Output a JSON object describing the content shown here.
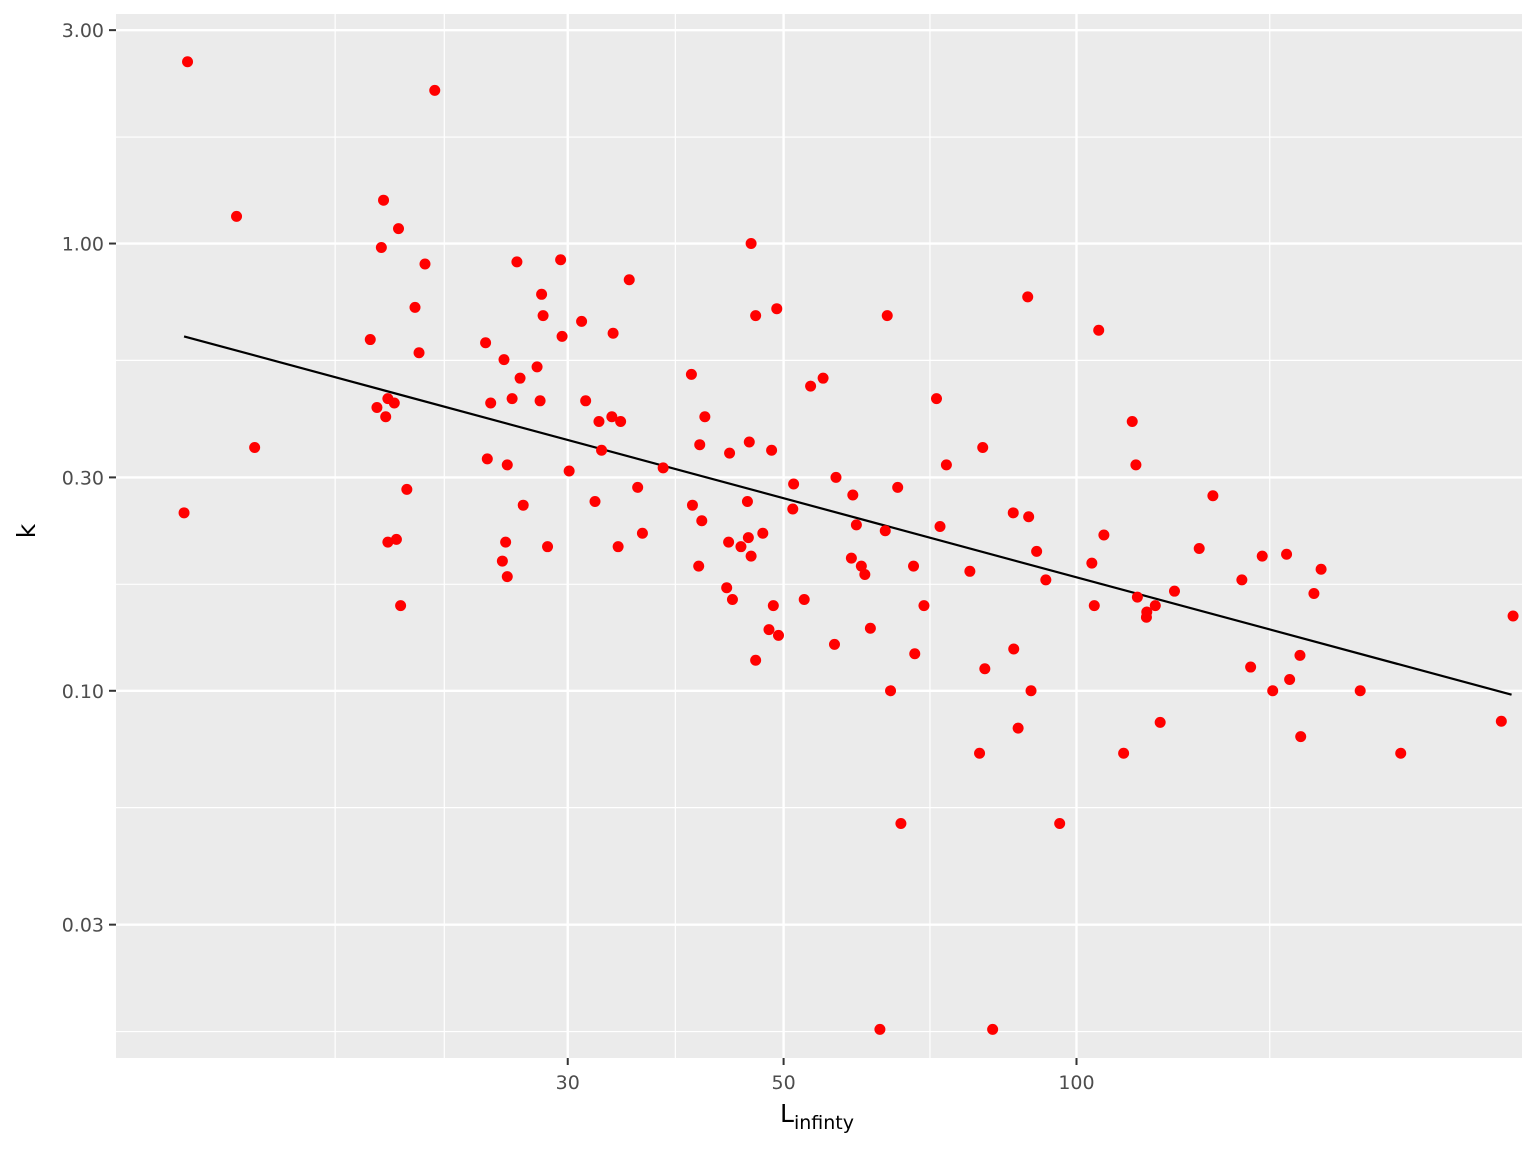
{
  "chart_data": {
    "type": "scatter",
    "xlabel": "L",
    "xlabel_subscript": "infinty",
    "ylabel": "k",
    "x_scale": "log10",
    "y_scale": "log10",
    "xlim": [
      10.3,
      287
    ],
    "ylim": [
      0.0151,
      3.26
    ],
    "x_ticks": [
      {
        "value": 30,
        "label": "30"
      },
      {
        "value": 50,
        "label": "50"
      },
      {
        "value": 100,
        "label": "100"
      }
    ],
    "y_ticks": [
      {
        "value": 0.03,
        "label": "0.03"
      },
      {
        "value": 0.1,
        "label": "0.10"
      },
      {
        "value": 0.3,
        "label": "0.30"
      },
      {
        "value": 1,
        "label": "1.00"
      },
      {
        "value": 3,
        "label": "3.00"
      }
    ],
    "x_minor_grid": [
      17.3,
      22.4,
      38.7,
      70.7,
      158
    ],
    "y_minor_grid": [
      0.0173,
      0.0548,
      0.173,
      0.548,
      1.73
    ],
    "grid": true,
    "point_color": "#ff0000",
    "line_color": "#000000",
    "panel_background": "#ebebeb",
    "grid_color": "#ffffff",
    "fit_line": {
      "x": [
        12.1,
        280
      ],
      "y": [
        0.62,
        0.098
      ]
    },
    "points": [
      {
        "x": 12.2,
        "y": 2.55
      },
      {
        "x": 13.7,
        "y": 1.15
      },
      {
        "x": 14.3,
        "y": 0.35
      },
      {
        "x": 12.1,
        "y": 0.25
      },
      {
        "x": 18.8,
        "y": 0.61
      },
      {
        "x": 19.1,
        "y": 0.43
      },
      {
        "x": 19.3,
        "y": 0.98
      },
      {
        "x": 19.4,
        "y": 1.25
      },
      {
        "x": 19.5,
        "y": 0.41
      },
      {
        "x": 19.6,
        "y": 0.45
      },
      {
        "x": 19.6,
        "y": 0.215
      },
      {
        "x": 19.9,
        "y": 0.44
      },
      {
        "x": 20.0,
        "y": 0.218
      },
      {
        "x": 20.1,
        "y": 1.08
      },
      {
        "x": 20.2,
        "y": 0.155
      },
      {
        "x": 20.5,
        "y": 0.282
      },
      {
        "x": 20.9,
        "y": 0.72
      },
      {
        "x": 21.1,
        "y": 0.57
      },
      {
        "x": 21.4,
        "y": 0.9
      },
      {
        "x": 21.9,
        "y": 2.2
      },
      {
        "x": 24.7,
        "y": 0.6
      },
      {
        "x": 24.8,
        "y": 0.33
      },
      {
        "x": 25.0,
        "y": 0.44
      },
      {
        "x": 25.7,
        "y": 0.195
      },
      {
        "x": 25.8,
        "y": 0.55
      },
      {
        "x": 25.9,
        "y": 0.215
      },
      {
        "x": 26.0,
        "y": 0.32
      },
      {
        "x": 26.0,
        "y": 0.18
      },
      {
        "x": 26.3,
        "y": 0.45
      },
      {
        "x": 26.6,
        "y": 0.91
      },
      {
        "x": 26.8,
        "y": 0.5
      },
      {
        "x": 27.0,
        "y": 0.26
      },
      {
        "x": 27.9,
        "y": 0.53
      },
      {
        "x": 28.1,
        "y": 0.445
      },
      {
        "x": 28.2,
        "y": 0.77
      },
      {
        "x": 28.3,
        "y": 0.69
      },
      {
        "x": 28.6,
        "y": 0.21
      },
      {
        "x": 29.5,
        "y": 0.92
      },
      {
        "x": 29.6,
        "y": 0.62
      },
      {
        "x": 30.1,
        "y": 0.31
      },
      {
        "x": 31.0,
        "y": 0.67
      },
      {
        "x": 31.3,
        "y": 0.445
      },
      {
        "x": 32.0,
        "y": 0.265
      },
      {
        "x": 32.3,
        "y": 0.4
      },
      {
        "x": 32.5,
        "y": 0.345
      },
      {
        "x": 33.3,
        "y": 0.41
      },
      {
        "x": 33.4,
        "y": 0.63
      },
      {
        "x": 33.8,
        "y": 0.21
      },
      {
        "x": 34.0,
        "y": 0.4
      },
      {
        "x": 34.7,
        "y": 0.83
      },
      {
        "x": 35.4,
        "y": 0.285
      },
      {
        "x": 35.8,
        "y": 0.225
      },
      {
        "x": 37.6,
        "y": 0.315
      },
      {
        "x": 40.2,
        "y": 0.51
      },
      {
        "x": 40.3,
        "y": 0.26
      },
      {
        "x": 40.9,
        "y": 0.19
      },
      {
        "x": 41.0,
        "y": 0.355
      },
      {
        "x": 41.2,
        "y": 0.24
      },
      {
        "x": 41.5,
        "y": 0.41
      },
      {
        "x": 43.7,
        "y": 0.17
      },
      {
        "x": 43.9,
        "y": 0.215
      },
      {
        "x": 44.0,
        "y": 0.34
      },
      {
        "x": 44.3,
        "y": 0.16
      },
      {
        "x": 45.2,
        "y": 0.21
      },
      {
        "x": 45.9,
        "y": 0.265
      },
      {
        "x": 46.0,
        "y": 0.22
      },
      {
        "x": 46.1,
        "y": 0.36
      },
      {
        "x": 46.3,
        "y": 0.2
      },
      {
        "x": 46.3,
        "y": 1.0
      },
      {
        "x": 46.8,
        "y": 0.69
      },
      {
        "x": 46.8,
        "y": 0.117
      },
      {
        "x": 47.6,
        "y": 0.225
      },
      {
        "x": 48.3,
        "y": 0.137
      },
      {
        "x": 48.6,
        "y": 0.345
      },
      {
        "x": 48.8,
        "y": 0.155
      },
      {
        "x": 49.2,
        "y": 0.715
      },
      {
        "x": 49.4,
        "y": 0.133
      },
      {
        "x": 51.1,
        "y": 0.255
      },
      {
        "x": 51.2,
        "y": 0.29
      },
      {
        "x": 52.5,
        "y": 0.16
      },
      {
        "x": 53.3,
        "y": 0.48
      },
      {
        "x": 54.9,
        "y": 0.5
      },
      {
        "x": 56.4,
        "y": 0.127
      },
      {
        "x": 56.6,
        "y": 0.3
      },
      {
        "x": 58.7,
        "y": 0.198
      },
      {
        "x": 58.9,
        "y": 0.274
      },
      {
        "x": 59.4,
        "y": 0.235
      },
      {
        "x": 60.1,
        "y": 0.19
      },
      {
        "x": 60.6,
        "y": 0.182
      },
      {
        "x": 61.4,
        "y": 0.138
      },
      {
        "x": 63.6,
        "y": 0.228
      },
      {
        "x": 63.9,
        "y": 0.69
      },
      {
        "x": 64.4,
        "y": 0.1
      },
      {
        "x": 65.5,
        "y": 0.285
      },
      {
        "x": 66.0,
        "y": 0.0505
      },
      {
        "x": 62.8,
        "y": 0.0175
      },
      {
        "x": 68.0,
        "y": 0.19
      },
      {
        "x": 68.2,
        "y": 0.121
      },
      {
        "x": 69.7,
        "y": 0.155
      },
      {
        "x": 71.8,
        "y": 0.45
      },
      {
        "x": 72.4,
        "y": 0.233
      },
      {
        "x": 73.5,
        "y": 0.32
      },
      {
        "x": 77.7,
        "y": 0.185
      },
      {
        "x": 79.5,
        "y": 0.0725
      },
      {
        "x": 80.1,
        "y": 0.35
      },
      {
        "x": 80.5,
        "y": 0.112
      },
      {
        "x": 82.0,
        "y": 0.0175
      },
      {
        "x": 86.1,
        "y": 0.25
      },
      {
        "x": 86.2,
        "y": 0.124
      },
      {
        "x": 87.1,
        "y": 0.0825
      },
      {
        "x": 89.1,
        "y": 0.76
      },
      {
        "x": 89.3,
        "y": 0.245
      },
      {
        "x": 89.8,
        "y": 0.1
      },
      {
        "x": 91.0,
        "y": 0.205
      },
      {
        "x": 93.0,
        "y": 0.177
      },
      {
        "x": 96.1,
        "y": 0.0505
      },
      {
        "x": 103.7,
        "y": 0.193
      },
      {
        "x": 104.3,
        "y": 0.155
      },
      {
        "x": 105.4,
        "y": 0.64
      },
      {
        "x": 106.7,
        "y": 0.223
      },
      {
        "x": 111.8,
        "y": 0.0725
      },
      {
        "x": 114.1,
        "y": 0.4
      },
      {
        "x": 115.1,
        "y": 0.32
      },
      {
        "x": 115.5,
        "y": 0.162
      },
      {
        "x": 118.1,
        "y": 0.15
      },
      {
        "x": 118.0,
        "y": 0.146
      },
      {
        "x": 120.5,
        "y": 0.155
      },
      {
        "x": 121.9,
        "y": 0.085
      },
      {
        "x": 126.1,
        "y": 0.167
      },
      {
        "x": 133.7,
        "y": 0.208
      },
      {
        "x": 138.1,
        "y": 0.273
      },
      {
        "x": 147.9,
        "y": 0.177
      },
      {
        "x": 151.0,
        "y": 0.113
      },
      {
        "x": 155.2,
        "y": 0.2
      },
      {
        "x": 159.1,
        "y": 0.1
      },
      {
        "x": 164.4,
        "y": 0.202
      },
      {
        "x": 165.6,
        "y": 0.106
      },
      {
        "x": 170.0,
        "y": 0.079
      },
      {
        "x": 169.7,
        "y": 0.12
      },
      {
        "x": 175.4,
        "y": 0.165
      },
      {
        "x": 178.4,
        "y": 0.187
      },
      {
        "x": 195.7,
        "y": 0.1
      },
      {
        "x": 215.4,
        "y": 0.0725
      },
      {
        "x": 273.3,
        "y": 0.0855
      },
      {
        "x": 281.0,
        "y": 0.147
      }
    ]
  }
}
